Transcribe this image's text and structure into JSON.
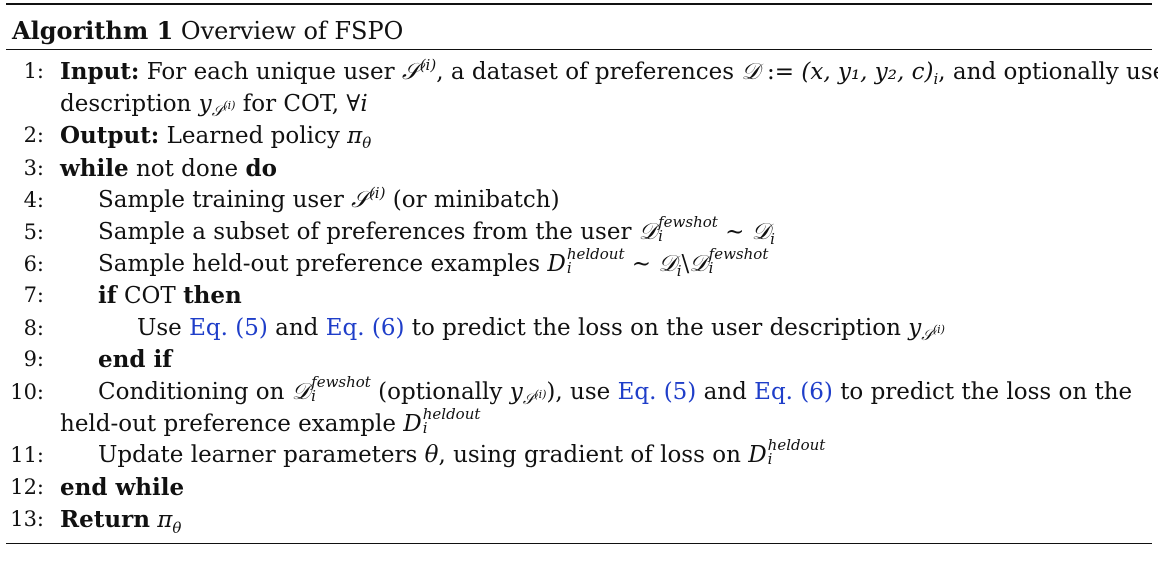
{
  "algorithm": {
    "label": "Algorithm 1",
    "title": "Overview of FSPO"
  },
  "numbers": [
    "1:",
    "2:",
    "3:",
    "4:",
    "5:",
    "6:",
    "7:",
    "8:",
    "9:",
    "10:",
    "11:",
    "12:",
    "13:"
  ],
  "keywords": {
    "input": "Input:",
    "output": "Output:",
    "while": "while",
    "do": "do",
    "if": "if",
    "then": "then",
    "end_if": "end if",
    "end_while": "end while",
    "return": "Return"
  },
  "lines": {
    "l1_a": "For each unique user",
    "l1_b": ", a dataset of preferences",
    "l1_c": ", and optionally user",
    "l1_d": "description",
    "l1_e": "for COT, ∀",
    "l2": "Learned policy",
    "l3": "not done",
    "l4_a": "Sample training user",
    "l4_b": "(or minibatch)",
    "l5": "Sample a subset of preferences from the user",
    "l6": "Sample held-out preference examples",
    "l7": "COT",
    "l8_a": "Use",
    "l8_b": "and",
    "l8_c": "to predict the loss on the user description",
    "l10_a": "Conditioning on",
    "l10_b": "(optionally",
    "l10_c": "), use",
    "l10_d": "and",
    "l10_e": "to predict the loss on the",
    "l10_f": "held-out preference example",
    "l11_a": "Update learner parameters",
    "l11_b": ", using gradient of loss on"
  },
  "refs": {
    "eq5": "Eq. (5)",
    "eq6": "Eq. (6)"
  },
  "math": {
    "S": "𝒮",
    "D": "𝒟",
    "D_plain": "D",
    "i": "i",
    "sup_i": "(i)",
    "tuple": "(x, y₁, y₂, c)",
    "assign": ":=",
    "y": "y",
    "pi": "π",
    "theta": "θ",
    "fewshot": "fewshot",
    "heldout": "heldout",
    "sim": "∼",
    "setminus": "\\"
  }
}
